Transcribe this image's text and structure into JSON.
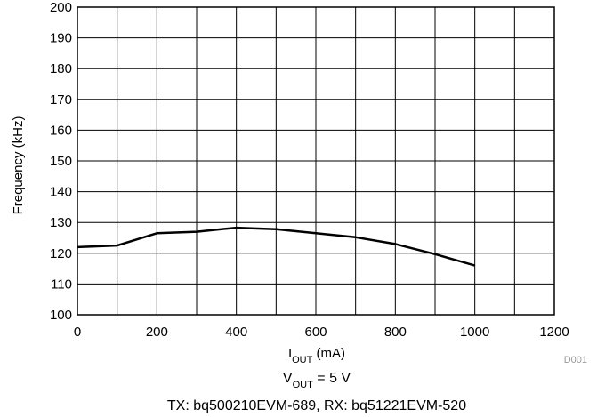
{
  "chart_data": {
    "type": "line",
    "title": "",
    "xlabel": {
      "main": "I",
      "sub": "OUT",
      "unit": " (mA)"
    },
    "ylabel": "Frequency (kHz)",
    "xlim": [
      0,
      1200
    ],
    "ylim": [
      100,
      200
    ],
    "x_ticks": [
      0,
      200,
      400,
      600,
      800,
      1000,
      1200
    ],
    "y_ticks": [
      100,
      110,
      120,
      130,
      140,
      150,
      160,
      170,
      180,
      190,
      200
    ],
    "x_grid": [
      0,
      100,
      200,
      300,
      400,
      500,
      600,
      700,
      800,
      900,
      1000,
      1100,
      1200
    ],
    "grid": true,
    "series": [
      {
        "x": [
          0,
          100,
          200,
          300,
          400,
          500,
          600,
          700,
          800,
          900,
          1000
        ],
        "values": [
          122,
          122.5,
          126.5,
          127,
          128.3,
          127.8,
          126.5,
          125.2,
          123,
          119.7,
          116
        ]
      }
    ],
    "figure_code": "D001"
  },
  "caption": {
    "line1": {
      "main": "V",
      "sub": "OUT",
      "rest": " = 5 V"
    },
    "line2": "TX: bq500210EVM-689, RX: bq51221EVM-520"
  }
}
